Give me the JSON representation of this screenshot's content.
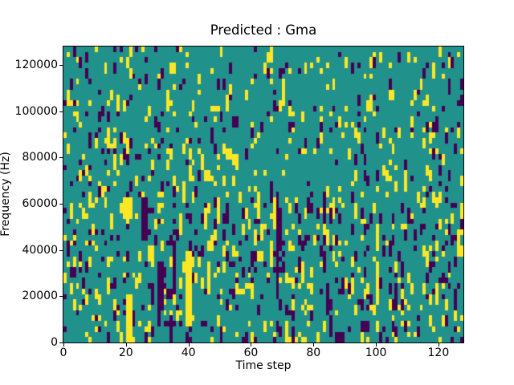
{
  "chart_data": {
    "type": "heatmap",
    "title": "Predicted : Gma",
    "xlabel": "Time step",
    "ylabel": "Frequency (Hz)",
    "x_range": [
      0,
      128
    ],
    "y_range": [
      0,
      128000
    ],
    "x_ticks": [
      0,
      20,
      40,
      60,
      80,
      100,
      120
    ],
    "x_tick_labels": [
      "0",
      "20",
      "40",
      "60",
      "80",
      "100",
      "120"
    ],
    "y_ticks": [
      0,
      20000,
      40000,
      60000,
      80000,
      100000,
      120000
    ],
    "y_tick_labels": [
      "0",
      "20000",
      "40000",
      "60000",
      "80000",
      "100000",
      "120000"
    ],
    "grid": {
      "cols": 128,
      "rows": 55
    },
    "colormap": "viridis (3-level categorical)",
    "value_colors": {
      "0": "#440154",
      "1": "#21918c",
      "2": "#fde725"
    },
    "value_legend": {
      "0": "low (purple)",
      "1": "background (teal)",
      "2": "high (yellow)"
    },
    "background_value": 1,
    "legend": "none",
    "grid_lines": false,
    "noise": {
      "seed": 42,
      "run_extend_p": 0.38,
      "bands": [
        {
          "row_start": 0,
          "row_end": 8,
          "p_low": 0.04,
          "p_high": 0.045
        },
        {
          "row_start": 9,
          "row_end": 26,
          "p_low": 0.055,
          "p_high": 0.06
        },
        {
          "row_start": 27,
          "row_end": 43,
          "p_low": 0.09,
          "p_high": 0.095
        },
        {
          "row_start": 44,
          "row_end": 54,
          "p_low": 0.08,
          "p_high": 0.085
        }
      ]
    },
    "features": [
      [
        10,
        0,
        1,
        1,
        2
      ],
      [
        3,
        0,
        1,
        2,
        0
      ],
      [
        16,
        0,
        1,
        1,
        0
      ],
      [
        5,
        2,
        1,
        1,
        0
      ],
      [
        16,
        3,
        1,
        2,
        0
      ],
      [
        34,
        3,
        1,
        2,
        2
      ],
      [
        24,
        7,
        1,
        1,
        2
      ],
      [
        4,
        10,
        1,
        1,
        2
      ],
      [
        52,
        9,
        1,
        3,
        2
      ],
      [
        53,
        3,
        1,
        2,
        0
      ],
      [
        64,
        3,
        1,
        2,
        2
      ],
      [
        70,
        6,
        1,
        5,
        2
      ],
      [
        92,
        3,
        1,
        2,
        0
      ],
      [
        99,
        2,
        1,
        2,
        0
      ],
      [
        101,
        1,
        1,
        2,
        2
      ],
      [
        104,
        6,
        1,
        2,
        0
      ],
      [
        107,
        1,
        1,
        2,
        0
      ],
      [
        110,
        1,
        1,
        2,
        2
      ],
      [
        112,
        2,
        1,
        1,
        2
      ],
      [
        115,
        4,
        1,
        2,
        0
      ],
      [
        120,
        0,
        1,
        2,
        2
      ],
      [
        121,
        3,
        1,
        1,
        0
      ],
      [
        123,
        7,
        1,
        2,
        0
      ],
      [
        97,
        10,
        1,
        2,
        2
      ],
      [
        7,
        12,
        1,
        1,
        0
      ],
      [
        11,
        15,
        1,
        1,
        0
      ],
      [
        14,
        15,
        1,
        4,
        2
      ],
      [
        18,
        16,
        1,
        2,
        0
      ],
      [
        20,
        18,
        1,
        2,
        2
      ],
      [
        28,
        17,
        1,
        1,
        2
      ],
      [
        31,
        17,
        1,
        1,
        0
      ],
      [
        14,
        19,
        1,
        1,
        0
      ],
      [
        27,
        19,
        1,
        1,
        0
      ],
      [
        24,
        20,
        1,
        1,
        0
      ],
      [
        28,
        21,
        1,
        2,
        2
      ],
      [
        5,
        23,
        1,
        2,
        2
      ],
      [
        25,
        24,
        1,
        1,
        0
      ],
      [
        31,
        25,
        1,
        2,
        0
      ],
      [
        11,
        25,
        1,
        1,
        2
      ],
      [
        16,
        25,
        1,
        1,
        2
      ],
      [
        13,
        26,
        1,
        1,
        2
      ],
      [
        40,
        24,
        2,
        1,
        2
      ],
      [
        55,
        20,
        1,
        3,
        2
      ],
      [
        60,
        15,
        1,
        2,
        0
      ],
      [
        72,
        14,
        1,
        2,
        0
      ],
      [
        77,
        17,
        1,
        2,
        0
      ],
      [
        96,
        20,
        1,
        2,
        0
      ],
      [
        118,
        15,
        2,
        1,
        0
      ],
      [
        122,
        15,
        1,
        1,
        2
      ],
      [
        126,
        15,
        1,
        2,
        2
      ],
      [
        19,
        28,
        3,
        4,
        2
      ],
      [
        25,
        28,
        2,
        8,
        0
      ],
      [
        37,
        31,
        1,
        4,
        2
      ],
      [
        45,
        30,
        1,
        4,
        2
      ],
      [
        62,
        27,
        1,
        4,
        2
      ],
      [
        63,
        33,
        1,
        3,
        2
      ],
      [
        67,
        28,
        1,
        6,
        2
      ],
      [
        66,
        36,
        1,
        5,
        2
      ],
      [
        68,
        27,
        1,
        20,
        0
      ],
      [
        69,
        30,
        1,
        8,
        0
      ],
      [
        83,
        28,
        1,
        3,
        0
      ],
      [
        85,
        30,
        1,
        3,
        0
      ],
      [
        92,
        27,
        1,
        2,
        0
      ],
      [
        113,
        27,
        1,
        2,
        2
      ],
      [
        115,
        28,
        1,
        2,
        2
      ],
      [
        120,
        27,
        1,
        2,
        2
      ],
      [
        110,
        30,
        1,
        3,
        0
      ],
      [
        39,
        38,
        2,
        14,
        2
      ],
      [
        46,
        40,
        1,
        6,
        2
      ],
      [
        30,
        40,
        2,
        9,
        0
      ],
      [
        35,
        36,
        1,
        10,
        0
      ],
      [
        20,
        46,
        2,
        9,
        2
      ],
      [
        83,
        38,
        1,
        4,
        0
      ],
      [
        84,
        44,
        1,
        6,
        0
      ],
      [
        85,
        50,
        1,
        4,
        0
      ],
      [
        100,
        33,
        1,
        5,
        2
      ],
      [
        100,
        40,
        1,
        8,
        2
      ],
      [
        104,
        44,
        1,
        2,
        0
      ],
      [
        106,
        45,
        1,
        2,
        0
      ],
      [
        108,
        47,
        1,
        2,
        0
      ],
      [
        108,
        45,
        1,
        2,
        2
      ],
      [
        111,
        44,
        1,
        2,
        2
      ],
      [
        115,
        44,
        1,
        2,
        2
      ],
      [
        117,
        40,
        1,
        2,
        0
      ],
      [
        124,
        35,
        1,
        2,
        0
      ],
      [
        125,
        46,
        1,
        2,
        0
      ],
      [
        88,
        53,
        2,
        2,
        0
      ],
      [
        22,
        54,
        1,
        1,
        2
      ],
      [
        97,
        54,
        1,
        1,
        2
      ]
    ]
  }
}
